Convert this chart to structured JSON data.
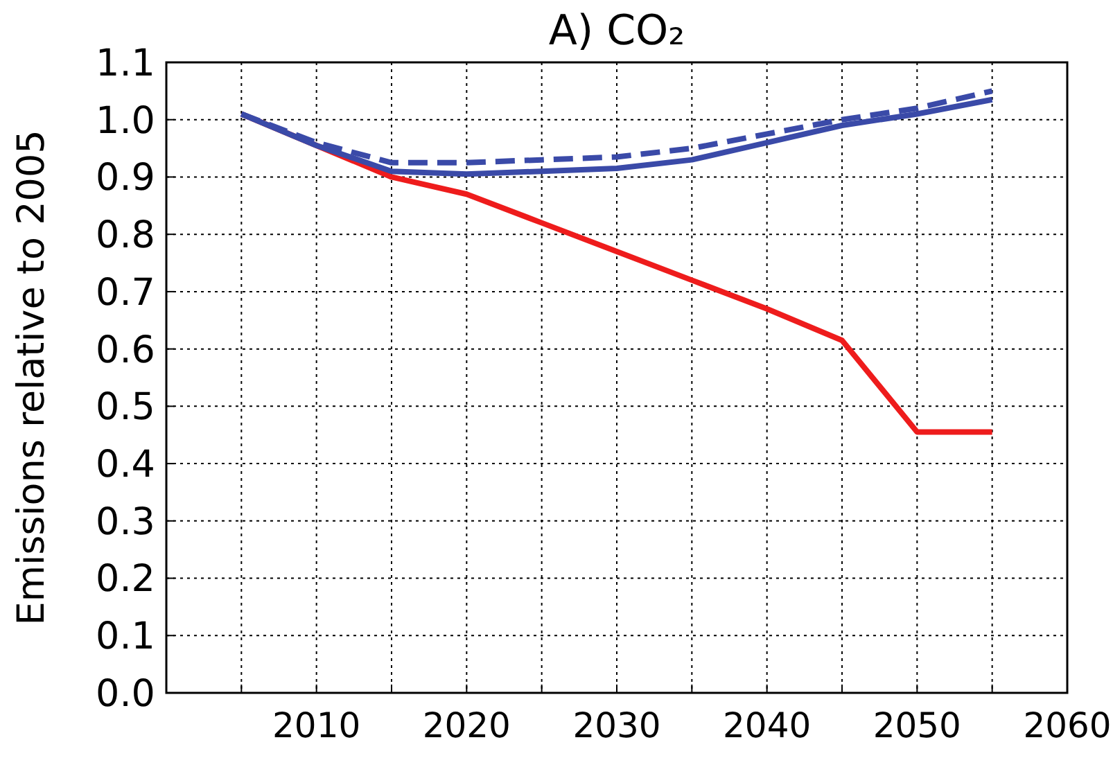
{
  "chart_data": {
    "type": "line",
    "title": "A) CO₂",
    "ylabel": "Emissions relative to 2005",
    "x": [
      2005,
      2010,
      2015,
      2020,
      2025,
      2030,
      2035,
      2040,
      2045,
      2050,
      2055
    ],
    "series": [
      {
        "color": "#ee1c1c",
        "line_style": "solid",
        "values": [
          1.01,
          0.955,
          0.9,
          0.87,
          0.82,
          0.77,
          0.72,
          0.67,
          0.615,
          0.455,
          0.455
        ]
      },
      {
        "color": "#3a4aa8",
        "line_style": "solid",
        "values": [
          1.01,
          0.955,
          0.91,
          0.905,
          0.91,
          0.915,
          0.93,
          0.96,
          0.99,
          1.01,
          1.035
        ]
      },
      {
        "color": "#3a4aa8",
        "line_style": "dashed",
        "values": [
          1.01,
          0.96,
          0.925,
          0.925,
          0.93,
          0.935,
          0.95,
          0.975,
          1.0,
          1.02,
          1.05
        ]
      }
    ],
    "xlim": [
      2000,
      2060
    ],
    "xticks": [
      {
        "value": 2005,
        "label": null
      },
      2010,
      {
        "value": 2015,
        "label": null
      },
      2020,
      {
        "value": 2025,
        "label": null
      },
      2030,
      {
        "value": 2035,
        "label": null
      },
      2040,
      {
        "value": 2045,
        "label": null
      },
      2050,
      {
        "value": 2055,
        "label": null
      },
      2060
    ],
    "ylim": [
      0,
      1.1
    ],
    "yticks": [
      {
        "value": 0,
        "label": "0.0"
      },
      {
        "value": 0.1,
        "label": "0.1"
      },
      {
        "value": 0.2,
        "label": "0.2"
      },
      {
        "value": 0.3,
        "label": "0.3"
      },
      {
        "value": 0.4,
        "label": "0.4"
      },
      {
        "value": 0.5,
        "label": "0.5"
      },
      {
        "value": 0.6,
        "label": "0.6"
      },
      {
        "value": 0.7,
        "label": "0.7"
      },
      {
        "value": 0.8,
        "label": "0.8"
      },
      {
        "value": 0.9,
        "label": "0.9"
      },
      {
        "value": 1.0,
        "label": "1.0"
      },
      {
        "value": 1.1,
        "label": "1.1"
      }
    ],
    "grid": true
  }
}
